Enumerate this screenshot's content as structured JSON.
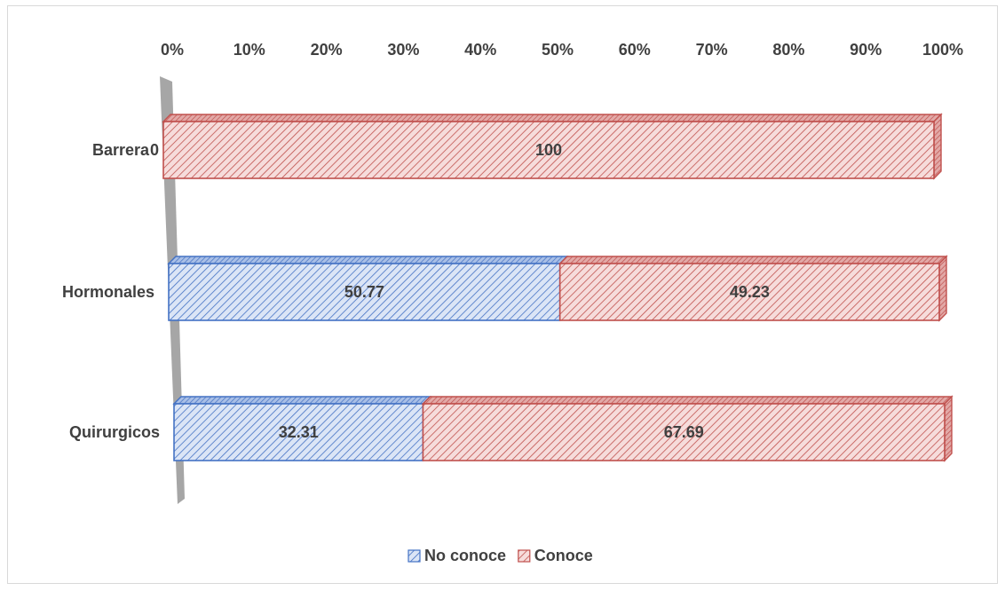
{
  "chart_data": {
    "type": "bar",
    "orientation": "horizontal",
    "stacked": "percent",
    "categories": [
      "Barrera",
      "Hormonales",
      "Quirurgicos"
    ],
    "series": [
      {
        "name": "No conoce",
        "values": [
          0,
          50.77,
          32.31
        ],
        "color": "#4472c4"
      },
      {
        "name": "Conoce",
        "values": [
          100,
          49.23,
          67.69
        ],
        "color": "#c0504d"
      }
    ],
    "x_ticks": [
      "0%",
      "10%",
      "20%",
      "30%",
      "40%",
      "50%",
      "60%",
      "70%",
      "80%",
      "90%",
      "100%"
    ],
    "xlim": [
      0,
      100
    ],
    "axis_position": "top",
    "legend_position": "bottom",
    "grid": false
  }
}
